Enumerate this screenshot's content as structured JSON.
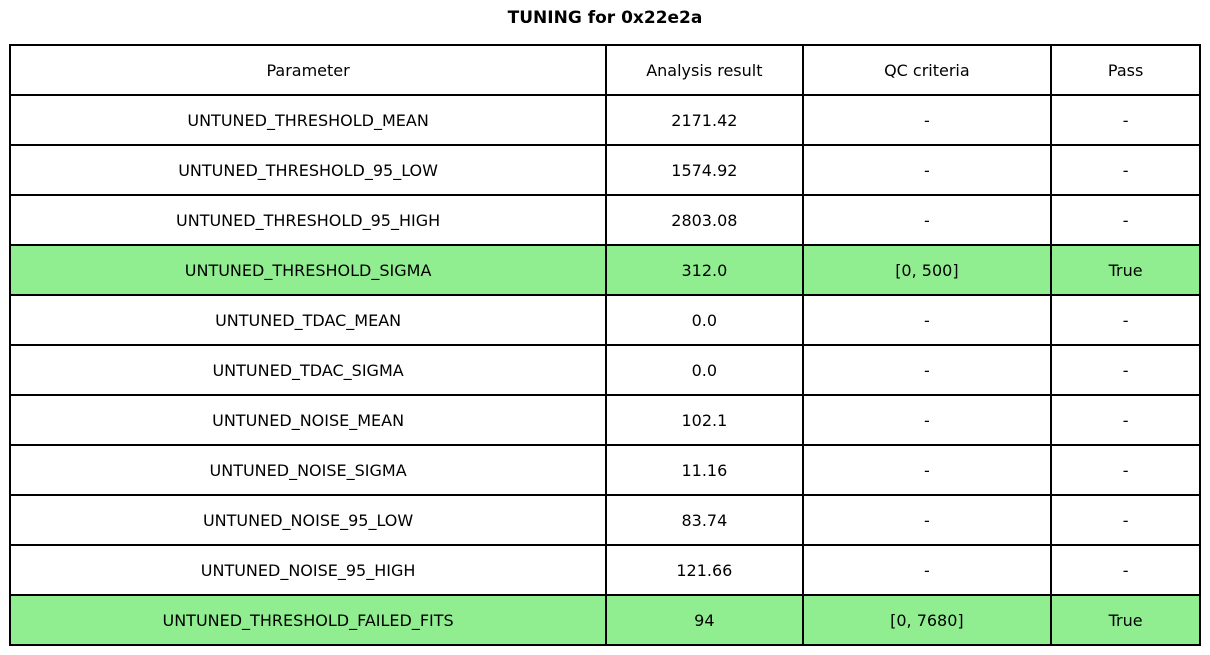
{
  "chart_data": {
    "type": "table",
    "title": "TUNING for 0x22e2a",
    "columns": [
      "Parameter",
      "Analysis result",
      "QC criteria",
      "Pass"
    ],
    "rows": [
      {
        "cells": [
          "UNTUNED_THRESHOLD_MEAN",
          "2171.42",
          "-",
          "-"
        ],
        "highlight": false
      },
      {
        "cells": [
          "UNTUNED_THRESHOLD_95_LOW",
          "1574.92",
          "-",
          "-"
        ],
        "highlight": false
      },
      {
        "cells": [
          "UNTUNED_THRESHOLD_95_HIGH",
          "2803.08",
          "-",
          "-"
        ],
        "highlight": false
      },
      {
        "cells": [
          "UNTUNED_THRESHOLD_SIGMA",
          "312.0",
          "[0, 500]",
          "True"
        ],
        "highlight": true
      },
      {
        "cells": [
          "UNTUNED_TDAC_MEAN",
          "0.0",
          "-",
          "-"
        ],
        "highlight": false
      },
      {
        "cells": [
          "UNTUNED_TDAC_SIGMA",
          "0.0",
          "-",
          "-"
        ],
        "highlight": false
      },
      {
        "cells": [
          "UNTUNED_NOISE_MEAN",
          "102.1",
          "-",
          "-"
        ],
        "highlight": false
      },
      {
        "cells": [
          "UNTUNED_NOISE_SIGMA",
          "11.16",
          "-",
          "-"
        ],
        "highlight": false
      },
      {
        "cells": [
          "UNTUNED_NOISE_95_LOW",
          "83.74",
          "-",
          "-"
        ],
        "highlight": false
      },
      {
        "cells": [
          "UNTUNED_NOISE_95_HIGH",
          "121.66",
          "-",
          "-"
        ],
        "highlight": false
      },
      {
        "cells": [
          "UNTUNED_THRESHOLD_FAILED_FITS",
          "94",
          "[0, 7680]",
          "True"
        ],
        "highlight": true
      }
    ],
    "layout": {
      "highlighted_row_indices": [
        3,
        10
      ],
      "grid": true,
      "legend": "none"
    },
    "colors": {
      "highlight_green": "#90EE90",
      "border": "#000000",
      "background": "#FFFFFF",
      "text": "#000000"
    }
  }
}
